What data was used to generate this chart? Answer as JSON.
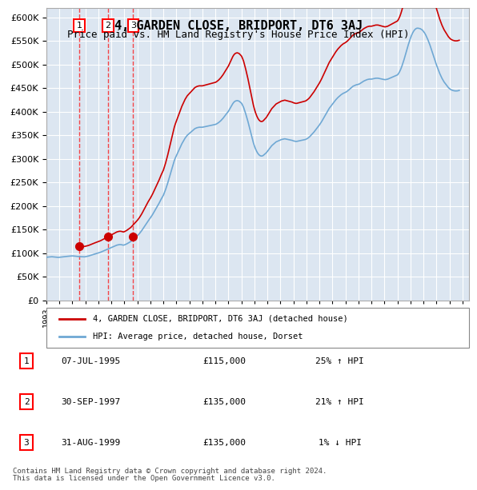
{
  "title": "4, GARDEN CLOSE, BRIDPORT, DT6 3AJ",
  "subtitle": "Price paid vs. HM Land Registry's House Price Index (HPI)",
  "ylabel": "",
  "ylim": [
    0,
    620000
  ],
  "yticks": [
    0,
    50000,
    100000,
    150000,
    200000,
    250000,
    300000,
    350000,
    400000,
    450000,
    500000,
    550000,
    600000
  ],
  "xlim_start": 1993.0,
  "xlim_end": 2025.5,
  "bg_color": "#dce6f1",
  "plot_bg": "#dce6f1",
  "grid_color": "#ffffff",
  "hpi_color": "#6fa8d4",
  "price_color": "#cc0000",
  "transactions": [
    {
      "num": 1,
      "date_x": 1995.52,
      "price": 115000,
      "label": "07-JUL-1995",
      "amount": "£115,000",
      "change": "25% ↑ HPI"
    },
    {
      "num": 2,
      "date_x": 1997.75,
      "price": 135000,
      "label": "30-SEP-1997",
      "amount": "£135,000",
      "change": "21% ↑ HPI"
    },
    {
      "num": 3,
      "date_x": 1999.67,
      "price": 135000,
      "label": "31-AUG-1999",
      "amount": "£135,000",
      "change": "1% ↓ HPI"
    }
  ],
  "legend_line1": "4, GARDEN CLOSE, BRIDPORT, DT6 3AJ (detached house)",
  "legend_line2": "HPI: Average price, detached house, Dorset",
  "footer1": "Contains HM Land Registry data © Crown copyright and database right 2024.",
  "footer2": "This data is licensed under the Open Government Licence v3.0.",
  "hpi_data_x": [
    1993.0,
    1993.083,
    1993.167,
    1993.25,
    1993.333,
    1993.417,
    1993.5,
    1993.583,
    1993.667,
    1993.75,
    1993.833,
    1993.917,
    1994.0,
    1994.083,
    1994.167,
    1994.25,
    1994.333,
    1994.417,
    1994.5,
    1994.583,
    1994.667,
    1994.75,
    1994.833,
    1994.917,
    1995.0,
    1995.083,
    1995.167,
    1995.25,
    1995.333,
    1995.417,
    1995.5,
    1995.583,
    1995.667,
    1995.75,
    1995.833,
    1995.917,
    1996.0,
    1996.083,
    1996.167,
    1996.25,
    1996.333,
    1996.417,
    1996.5,
    1996.583,
    1996.667,
    1996.75,
    1996.833,
    1996.917,
    1997.0,
    1997.083,
    1997.167,
    1997.25,
    1997.333,
    1997.417,
    1997.5,
    1997.583,
    1997.667,
    1997.75,
    1997.833,
    1997.917,
    1998.0,
    1998.083,
    1998.167,
    1998.25,
    1998.333,
    1998.417,
    1998.5,
    1998.583,
    1998.667,
    1998.75,
    1998.833,
    1998.917,
    1999.0,
    1999.083,
    1999.167,
    1999.25,
    1999.333,
    1999.417,
    1999.5,
    1999.583,
    1999.667,
    1999.75,
    1999.833,
    1999.917,
    2000.0,
    2000.083,
    2000.167,
    2000.25,
    2000.333,
    2000.417,
    2000.5,
    2000.583,
    2000.667,
    2000.75,
    2000.833,
    2000.917,
    2001.0,
    2001.083,
    2001.167,
    2001.25,
    2001.333,
    2001.417,
    2001.5,
    2001.583,
    2001.667,
    2001.75,
    2001.833,
    2001.917,
    2002.0,
    2002.083,
    2002.167,
    2002.25,
    2002.333,
    2002.417,
    2002.5,
    2002.583,
    2002.667,
    2002.75,
    2002.833,
    2002.917,
    2003.0,
    2003.083,
    2003.167,
    2003.25,
    2003.333,
    2003.417,
    2003.5,
    2003.583,
    2003.667,
    2003.75,
    2003.833,
    2003.917,
    2004.0,
    2004.083,
    2004.167,
    2004.25,
    2004.333,
    2004.417,
    2004.5,
    2004.583,
    2004.667,
    2004.75,
    2004.833,
    2004.917,
    2005.0,
    2005.083,
    2005.167,
    2005.25,
    2005.333,
    2005.417,
    2005.5,
    2005.583,
    2005.667,
    2005.75,
    2005.833,
    2005.917,
    2006.0,
    2006.083,
    2006.167,
    2006.25,
    2006.333,
    2006.417,
    2006.5,
    2006.583,
    2006.667,
    2006.75,
    2006.833,
    2006.917,
    2007.0,
    2007.083,
    2007.167,
    2007.25,
    2007.333,
    2007.417,
    2007.5,
    2007.583,
    2007.667,
    2007.75,
    2007.833,
    2007.917,
    2008.0,
    2008.083,
    2008.167,
    2008.25,
    2008.333,
    2008.417,
    2008.5,
    2008.583,
    2008.667,
    2008.75,
    2008.833,
    2008.917,
    2009.0,
    2009.083,
    2009.167,
    2009.25,
    2009.333,
    2009.417,
    2009.5,
    2009.583,
    2009.667,
    2009.75,
    2009.833,
    2009.917,
    2010.0,
    2010.083,
    2010.167,
    2010.25,
    2010.333,
    2010.417,
    2010.5,
    2010.583,
    2010.667,
    2010.75,
    2010.833,
    2010.917,
    2011.0,
    2011.083,
    2011.167,
    2011.25,
    2011.333,
    2011.417,
    2011.5,
    2011.583,
    2011.667,
    2011.75,
    2011.833,
    2011.917,
    2012.0,
    2012.083,
    2012.167,
    2012.25,
    2012.333,
    2012.417,
    2012.5,
    2012.583,
    2012.667,
    2012.75,
    2012.833,
    2012.917,
    2013.0,
    2013.083,
    2013.167,
    2013.25,
    2013.333,
    2013.417,
    2013.5,
    2013.583,
    2013.667,
    2013.75,
    2013.833,
    2013.917,
    2014.0,
    2014.083,
    2014.167,
    2014.25,
    2014.333,
    2014.417,
    2014.5,
    2014.583,
    2014.667,
    2014.75,
    2014.833,
    2014.917,
    2015.0,
    2015.083,
    2015.167,
    2015.25,
    2015.333,
    2015.417,
    2015.5,
    2015.583,
    2015.667,
    2015.75,
    2015.833,
    2015.917,
    2016.0,
    2016.083,
    2016.167,
    2016.25,
    2016.333,
    2016.417,
    2016.5,
    2016.583,
    2016.667,
    2016.75,
    2016.833,
    2016.917,
    2017.0,
    2017.083,
    2017.167,
    2017.25,
    2017.333,
    2017.417,
    2017.5,
    2017.583,
    2017.667,
    2017.75,
    2017.833,
    2017.917,
    2018.0,
    2018.083,
    2018.167,
    2018.25,
    2018.333,
    2018.417,
    2018.5,
    2018.583,
    2018.667,
    2018.75,
    2018.833,
    2018.917,
    2019.0,
    2019.083,
    2019.167,
    2019.25,
    2019.333,
    2019.417,
    2019.5,
    2019.583,
    2019.667,
    2019.75,
    2019.833,
    2019.917,
    2020.0,
    2020.083,
    2020.167,
    2020.25,
    2020.333,
    2020.417,
    2020.5,
    2020.583,
    2020.667,
    2020.75,
    2020.833,
    2020.917,
    2021.0,
    2021.083,
    2021.167,
    2021.25,
    2021.333,
    2021.417,
    2021.5,
    2021.583,
    2021.667,
    2021.75,
    2021.833,
    2021.917,
    2022.0,
    2022.083,
    2022.167,
    2022.25,
    2022.333,
    2022.417,
    2022.5,
    2022.583,
    2022.667,
    2022.75,
    2022.833,
    2022.917,
    2023.0,
    2023.083,
    2023.167,
    2023.25,
    2023.333,
    2023.417,
    2023.5,
    2023.583,
    2023.667,
    2023.75,
    2023.833,
    2023.917,
    2024.0,
    2024.083,
    2024.167,
    2024.25,
    2024.333,
    2024.417,
    2024.5,
    2024.583,
    2024.667,
    2024.75
  ],
  "hpi_data_y": [
    91000,
    91500,
    91800,
    92000,
    92200,
    92400,
    92200,
    92000,
    91800,
    91500,
    91200,
    91000,
    91200,
    91500,
    91800,
    92200,
    92500,
    92800,
    93000,
    93200,
    93400,
    93600,
    93800,
    94000,
    94200,
    94000,
    93800,
    93500,
    93200,
    93000,
    92800,
    92600,
    92500,
    92400,
    92300,
    92200,
    92500,
    93000,
    93500,
    94000,
    94800,
    95500,
    96200,
    97000,
    97800,
    98500,
    99200,
    99800,
    100500,
    101200,
    102000,
    103000,
    104000,
    105000,
    106000,
    107000,
    108000,
    109000,
    110000,
    111000,
    112000,
    113000,
    114000,
    115000,
    116000,
    117000,
    117500,
    118000,
    118200,
    118000,
    117500,
    117000,
    117500,
    118500,
    119500,
    120800,
    122000,
    123500,
    125000,
    127000,
    129000,
    131000,
    133000,
    135000,
    137000,
    139500,
    142000,
    145000,
    148000,
    151500,
    155000,
    158500,
    162000,
    165500,
    169000,
    172000,
    175000,
    178500,
    182000,
    186000,
    190000,
    194000,
    198000,
    202000,
    206000,
    210500,
    215000,
    219000,
    223000,
    229000,
    235000,
    242000,
    249000,
    257000,
    265000,
    273000,
    281000,
    289000,
    296000,
    302000,
    307000,
    312000,
    317000,
    322000,
    327000,
    332000,
    336000,
    340000,
    344000,
    347000,
    350000,
    352000,
    354000,
    356000,
    358000,
    360000,
    362000,
    364000,
    365000,
    366000,
    366500,
    367000,
    367000,
    367000,
    367000,
    367500,
    368000,
    368500,
    369000,
    369500,
    370000,
    370500,
    371000,
    371500,
    372000,
    372500,
    373000,
    374000,
    375500,
    377000,
    379000,
    381000,
    383500,
    386000,
    389000,
    392000,
    395000,
    398000,
    401000,
    405000,
    409000,
    413000,
    417000,
    420000,
    422000,
    423000,
    423500,
    423000,
    422000,
    420000,
    418000,
    414000,
    409000,
    402000,
    395000,
    387000,
    379000,
    370000,
    361000,
    352000,
    343000,
    334000,
    327000,
    321000,
    316000,
    312000,
    309000,
    307000,
    306000,
    306000,
    307000,
    309000,
    311000,
    313000,
    316000,
    319000,
    322000,
    325000,
    328000,
    330000,
    332000,
    334000,
    336000,
    337000,
    338000,
    339000,
    340000,
    341000,
    341500,
    342000,
    342500,
    342000,
    341500,
    341000,
    340500,
    340000,
    339500,
    339000,
    338000,
    337500,
    337000,
    337000,
    337500,
    338000,
    338500,
    339000,
    339500,
    340000,
    340500,
    341000,
    342000,
    343500,
    345000,
    347000,
    349500,
    352000,
    354500,
    357000,
    360000,
    363000,
    366000,
    369000,
    372000,
    375500,
    379000,
    383000,
    387000,
    391000,
    395000,
    399000,
    403000,
    407000,
    410000,
    413000,
    416000,
    419000,
    422000,
    425000,
    427500,
    430000,
    432000,
    434000,
    436000,
    437500,
    439000,
    440000,
    441000,
    442500,
    444000,
    446000,
    448000,
    450000,
    452000,
    454000,
    455000,
    456000,
    457000,
    457500,
    458000,
    459000,
    460500,
    462000,
    463500,
    465000,
    466000,
    467000,
    468000,
    468500,
    469000,
    469000,
    469000,
    469500,
    470000,
    470500,
    471000,
    471000,
    471000,
    470500,
    470000,
    469500,
    469000,
    468500,
    468000,
    468000,
    468500,
    469000,
    470000,
    471000,
    472000,
    473000,
    474000,
    475000,
    476000,
    477000,
    478000,
    481000,
    485000,
    490000,
    496000,
    503000,
    510000,
    518000,
    526000,
    534000,
    542000,
    549000,
    556000,
    562000,
    567000,
    571000,
    574000,
    576000,
    577000,
    577000,
    576500,
    576000,
    574500,
    573000,
    570000,
    567000,
    563000,
    558000,
    553000,
    547000,
    541000,
    534000,
    527000,
    520000,
    513000,
    506000,
    499000,
    493000,
    487000,
    481000,
    476000,
    471000,
    467000,
    463000,
    460000,
    457000,
    454000,
    451000,
    449000,
    447000,
    446000,
    445000,
    444500,
    444000,
    444000,
    444000,
    444500,
    445000
  ]
}
